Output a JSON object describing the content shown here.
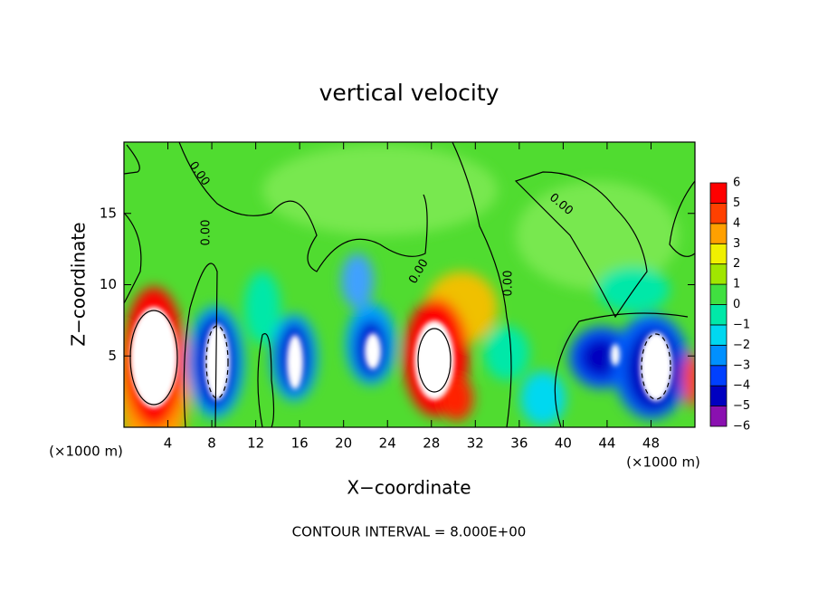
{
  "chart_data": {
    "type": "contour",
    "title": "vertical velocity",
    "x_label": "X−coordinate",
    "y_label": "Z−coordinate",
    "x_unit_label": "(×1000 m)",
    "y_unit_label": "(×1000 m)",
    "footer": "CONTOUR INTERVAL = 8.000E+00",
    "xlim": [
      0,
      52
    ],
    "ylim": [
      0,
      20
    ],
    "xticks": [
      4,
      8,
      12,
      16,
      20,
      24,
      28,
      32,
      36,
      40,
      44,
      48
    ],
    "yticks": [
      5,
      10,
      15
    ],
    "contour_labels": [
      "0.00",
      "0.00",
      "0.00",
      "0.00",
      "0.00"
    ],
    "colorbar_ticks": [
      {
        "value": -6,
        "label": "−6"
      },
      {
        "value": -5,
        "label": "−5"
      },
      {
        "value": -4,
        "label": "−4"
      },
      {
        "value": -3,
        "label": "−3"
      },
      {
        "value": -2,
        "label": "−2"
      },
      {
        "value": -1,
        "label": "−1"
      },
      0,
      1,
      2,
      3,
      4,
      5,
      6
    ],
    "colorbar_colors": [
      "#8a10b0",
      "#0000c0",
      "#0040ff",
      "#0090ff",
      "#00d8f0",
      "#00e8a8",
      "#40e040",
      "#a0e600",
      "#f0f000",
      "#ffa000",
      "#ff4000",
      "#ff0000"
    ]
  }
}
